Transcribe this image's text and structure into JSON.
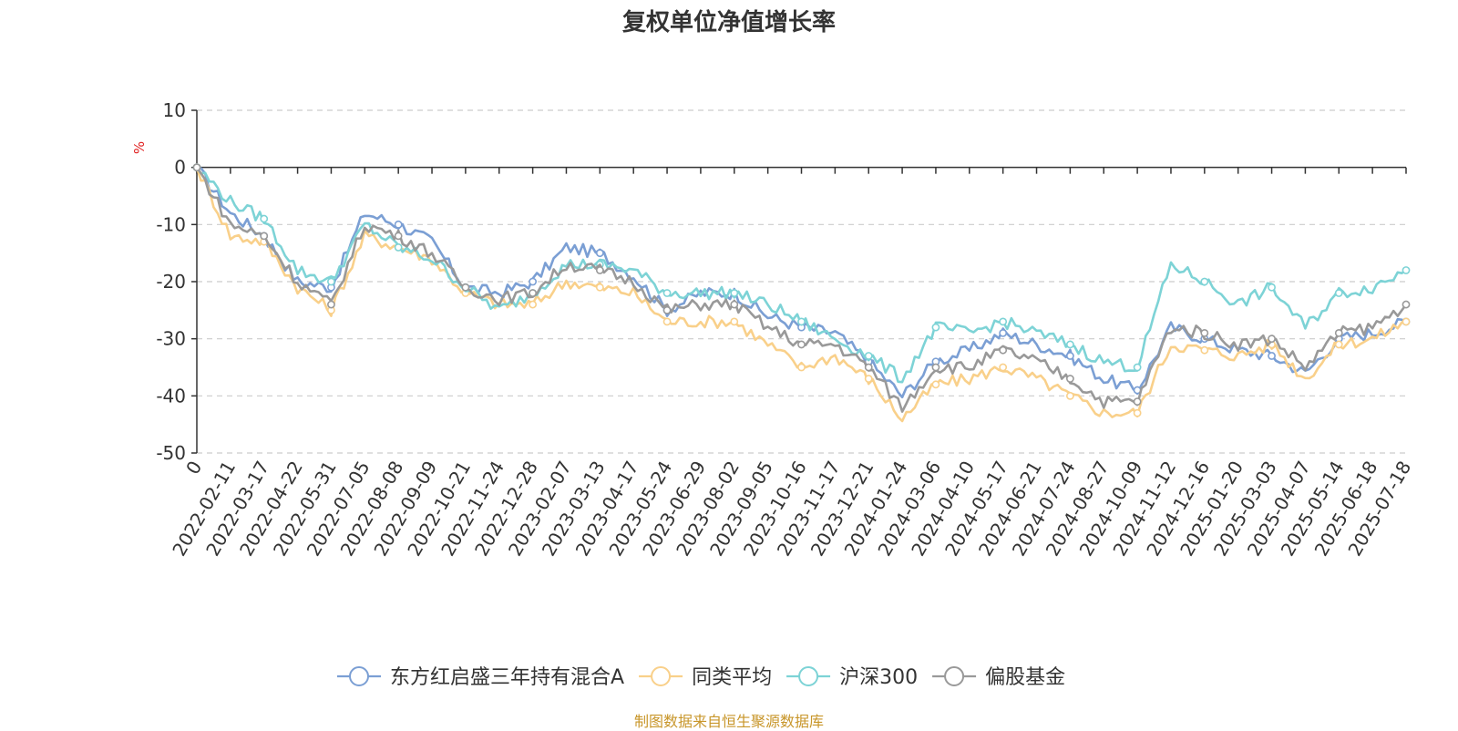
{
  "chart_data": {
    "type": "line",
    "title": "复权单位净值增长率",
    "ylabel": "%",
    "ylim": [
      -50,
      10
    ],
    "yticks": [
      10,
      0,
      -10,
      -20,
      -30,
      -40,
      -50
    ],
    "x_tick_labels": [
      "0",
      "2022-02-11",
      "2022-03-17",
      "2022-04-22",
      "2022-05-31",
      "2022-07-05",
      "2022-08-08",
      "2022-09-09",
      "2022-10-21",
      "2022-11-24",
      "2022-12-28",
      "2023-02-07",
      "2023-03-13",
      "2023-04-17",
      "2023-05-24",
      "2023-06-29",
      "2023-08-02",
      "2023-09-05",
      "2023-10-16",
      "2023-11-17",
      "2023-12-21",
      "2024-01-24",
      "2024-03-06",
      "2024-04-10",
      "2024-05-17",
      "2024-06-21",
      "2024-07-24",
      "2024-08-27",
      "2024-10-09",
      "2024-11-12",
      "2024-12-16",
      "2025-01-20",
      "2025-03-03",
      "2025-04-07",
      "2025-05-14",
      "2025-06-18",
      "2025-07-18"
    ],
    "grid": "horizontal-dashed",
    "legend_position": "bottom",
    "series": [
      {
        "name": "东方红启盛三年持有混合A",
        "color": "#7b9fd4",
        "values": [
          0,
          -8,
          -12,
          -20,
          -21,
          -8,
          -10,
          -13,
          -21,
          -22,
          -20,
          -14,
          -15,
          -19,
          -25,
          -22,
          -22,
          -26,
          -28,
          -29,
          -34,
          -40,
          -34,
          -32,
          -29,
          -31,
          -33,
          -37,
          -39,
          -28,
          -30,
          -32,
          -33,
          -36,
          -30,
          -29,
          -27
        ]
      },
      {
        "name": "同类平均",
        "color": "#f9d08a",
        "values": [
          0,
          -12,
          -13,
          -21,
          -25,
          -12,
          -14,
          -16,
          -22,
          -24,
          -24,
          -20,
          -21,
          -22,
          -27,
          -27,
          -27,
          -31,
          -35,
          -33,
          -37,
          -44,
          -38,
          -37,
          -35,
          -37,
          -40,
          -43,
          -43,
          -31,
          -32,
          -33,
          -31,
          -37,
          -31,
          -30,
          -27
        ]
      },
      {
        "name": "沪深300",
        "color": "#7dd3d6",
        "values": [
          0,
          -6,
          -9,
          -18,
          -20,
          -10,
          -14,
          -16,
          -21,
          -25,
          -22,
          -17,
          -17,
          -18,
          -22,
          -22,
          -22,
          -24,
          -27,
          -30,
          -33,
          -37,
          -28,
          -29,
          -27,
          -29,
          -31,
          -34,
          -35,
          -17,
          -20,
          -24,
          -21,
          -28,
          -22,
          -21,
          -18
        ]
      },
      {
        "name": "偏股基金",
        "color": "#999999",
        "values": [
          0,
          -10,
          -12,
          -20,
          -24,
          -10,
          -12,
          -15,
          -21,
          -23,
          -22,
          -17,
          -18,
          -20,
          -25,
          -24,
          -24,
          -28,
          -31,
          -31,
          -35,
          -42,
          -35,
          -35,
          -32,
          -34,
          -37,
          -41,
          -41,
          -28,
          -29,
          -31,
          -30,
          -35,
          -29,
          -28,
          -24
        ]
      }
    ]
  },
  "footer": {
    "source_text": "制图数据来自恒生聚源数据库"
  }
}
